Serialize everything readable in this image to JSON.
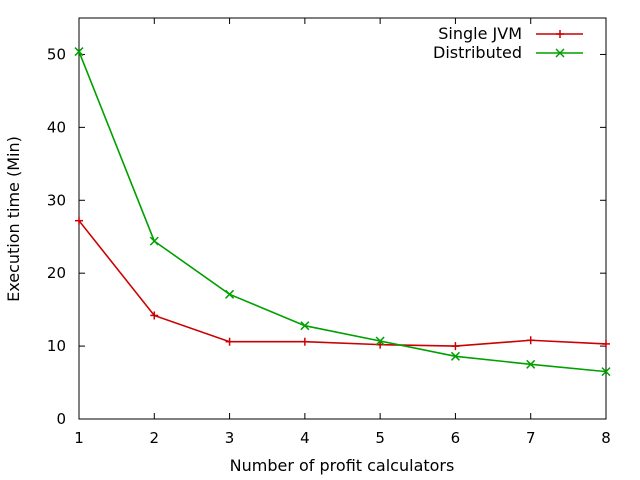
{
  "chart_data": {
    "type": "line",
    "xlabel": "Number of profit calculators",
    "ylabel": "Execution time (Min)",
    "x": [
      1,
      2,
      3,
      4,
      5,
      6,
      7,
      8
    ],
    "xlim": [
      1,
      8
    ],
    "ylim": [
      0,
      55
    ],
    "xticks": [
      "1",
      "2",
      "3",
      "4",
      "5",
      "6",
      "7",
      "8"
    ],
    "yticks": [
      "0",
      "10",
      "20",
      "30",
      "40",
      "50"
    ],
    "ytick_values": [
      0,
      10,
      20,
      30,
      40,
      50
    ],
    "grid": false,
    "legend_position": "top-right",
    "series": [
      {
        "name": "Single JVM",
        "color": "#cc0000",
        "marker": "plus",
        "values": [
          27.2,
          14.2,
          10.6,
          10.6,
          10.2,
          10.0,
          10.8,
          10.3
        ]
      },
      {
        "name": "Distributed",
        "color": "#00a000",
        "marker": "cross",
        "values": [
          50.4,
          24.4,
          17.1,
          12.8,
          10.7,
          8.6,
          7.5,
          6.5
        ]
      }
    ]
  }
}
